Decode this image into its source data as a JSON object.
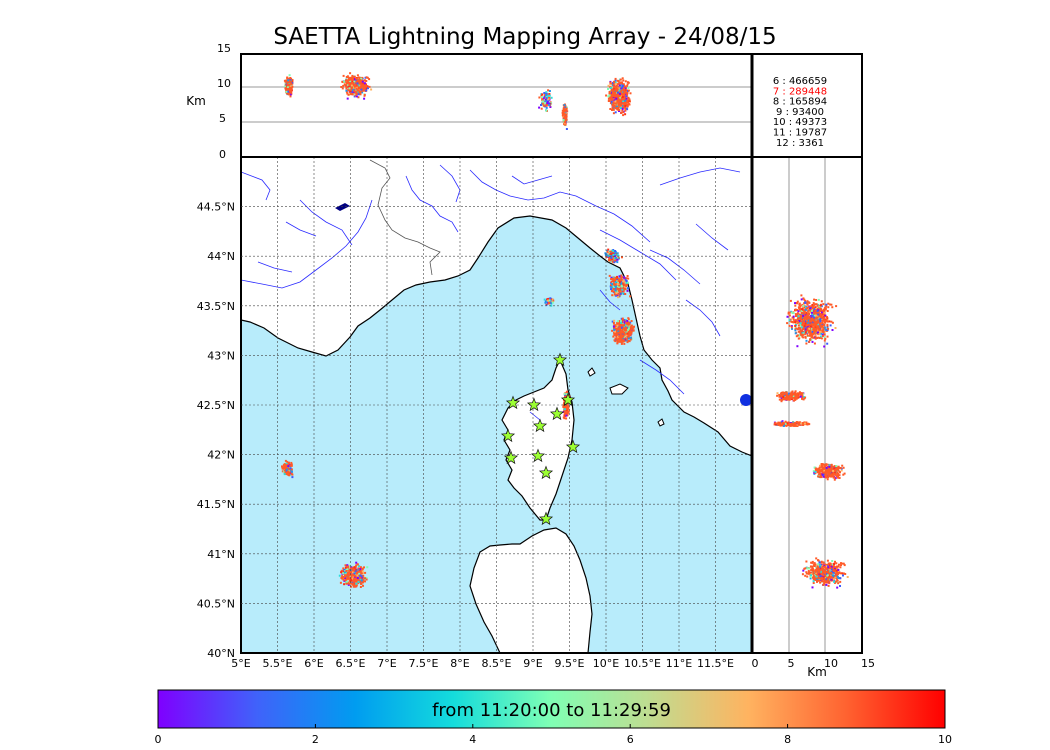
{
  "title": "SAETTA Lightning Mapping Array - 24/08/15",
  "top_panel": {
    "ylabel": "Km",
    "yticks": [
      "0",
      "5",
      "10",
      "15"
    ],
    "counts": [
      {
        "label": "6 :   466659",
        "color": "#000000"
      },
      {
        "label": "7 :   289448",
        "color": "#ff0000"
      },
      {
        "label": "8 :   165894",
        "color": "#000000"
      },
      {
        "label": "9 :     93400",
        "color": "#000000"
      },
      {
        "label": "10 :     49373",
        "color": "#000000"
      },
      {
        "label": "11 :     19787",
        "color": "#000000"
      },
      {
        "label": "12 :      3361",
        "color": "#000000"
      }
    ]
  },
  "map": {
    "lon_ticks": [
      "5°E",
      "5.5°E",
      "6°E",
      "6.5°E",
      "7°E",
      "7.5°E",
      "8°E",
      "8.5°E",
      "9°E",
      "9.5°E",
      "10°E",
      "10.5°E",
      "11°E",
      "11.5°E"
    ],
    "lat_ticks": [
      "40°N",
      "40.5°N",
      "41°N",
      "41.5°N",
      "42°N",
      "42.5°N",
      "43°N",
      "43.5°N",
      "44°N",
      "44.5°N"
    ],
    "colors": {
      "sea": "#b8ecfb",
      "land": "#ffffff",
      "rivers": "#1a1aff",
      "stations": "#9cff33"
    }
  },
  "right_panel": {
    "xlabel": "Km",
    "xticks": [
      "0",
      "5",
      "10",
      "15"
    ]
  },
  "colorbar": {
    "label": "from 11:20:00 to 11:29:59",
    "ticks": [
      "0",
      "2",
      "4",
      "6",
      "8",
      "10"
    ],
    "colormap": "rainbow"
  },
  "point_colors": [
    "#7f00ff",
    "#3a5cff",
    "#1e96f0",
    "#2adddd",
    "#80ffb4",
    "#ffb360",
    "#ff5a28",
    "#ff2c15"
  ]
}
